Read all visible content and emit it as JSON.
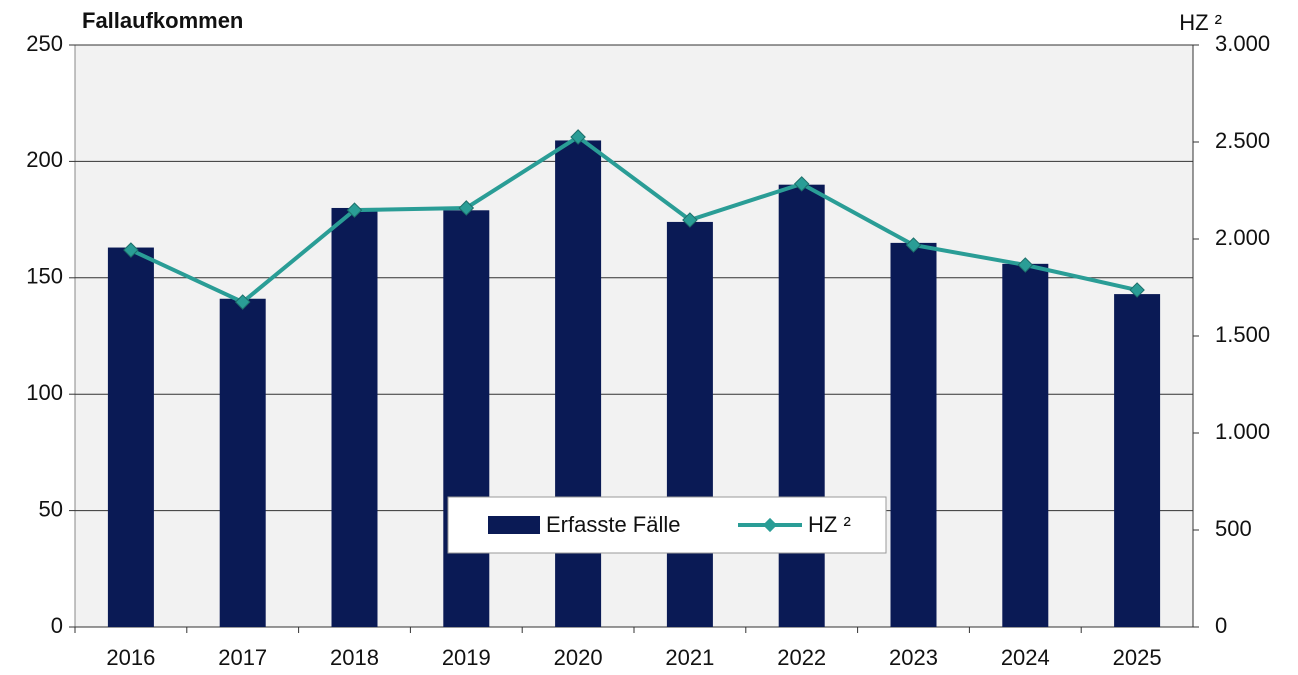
{
  "chart_data": {
    "type": "bar",
    "y_label": "Fallaufkommen",
    "y2_label": "HZ ²",
    "categories": [
      "2016",
      "2017",
      "2018",
      "2019",
      "2020",
      "2021",
      "2022",
      "2023",
      "2024",
      "2025"
    ],
    "series": [
      {
        "name": "Erfasste Fälle",
        "type": "bar",
        "color": "#0a1a55",
        "values": [
          163,
          141,
          180,
          179,
          209,
          174,
          190,
          165,
          156,
          143
        ]
      },
      {
        "name": "HZ ²",
        "type": "line",
        "axis": "y2",
        "color": "#2a9d96",
        "values": [
          1943,
          1675,
          2149,
          2160,
          2526,
          2098,
          2284,
          1969,
          1866,
          1737
        ]
      }
    ],
    "ylim": [
      0,
      250
    ],
    "yticks": [
      0,
      50,
      100,
      150,
      200,
      250
    ],
    "y2lim": [
      0,
      3000
    ],
    "y2ticks": [
      0,
      500,
      {
        "value": 1000,
        "label": "1.000"
      },
      {
        "value": 1500,
        "label": "1.500"
      },
      {
        "value": 2000,
        "label": "2.000"
      },
      {
        "value": 2500,
        "label": "2.500"
      },
      {
        "value": 3000,
        "label": "3.000"
      }
    ],
    "grid": true,
    "legend": "bottom-center"
  }
}
